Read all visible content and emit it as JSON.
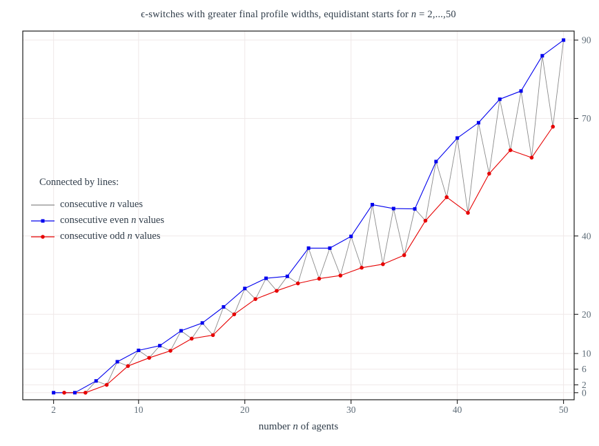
{
  "title": {
    "pre": "ϵ-switches with greater final profile widths, equidistant starts for ",
    "var": "n",
    "post": " = 2,...,50"
  },
  "xlabel": {
    "pre": "number ",
    "var": "n",
    "post": " of agents"
  },
  "legend": {
    "header": "Connected by lines:",
    "items": [
      {
        "pre": "consecutive ",
        "var": "n",
        "post": " values",
        "color": "#8a8a8a",
        "marker": "none"
      },
      {
        "pre": "consecutive even ",
        "var": "n",
        "post": " values",
        "color": "#0000ee",
        "marker": "square"
      },
      {
        "pre": "consecutive odd ",
        "var": "n",
        "post": " values",
        "color": "#e60000",
        "marker": "circle"
      }
    ]
  },
  "chart_data": {
    "type": "line",
    "title": "ϵ-switches with greater final profile widths, equidistant starts for n = 2,...,50",
    "xlabel": "number n of agents",
    "ylabel": "",
    "x": [
      2,
      3,
      4,
      5,
      6,
      7,
      8,
      9,
      10,
      11,
      12,
      13,
      14,
      15,
      16,
      17,
      18,
      19,
      20,
      21,
      22,
      23,
      24,
      25,
      26,
      27,
      28,
      29,
      30,
      31,
      32,
      33,
      34,
      35,
      36,
      37,
      38,
      39,
      40,
      41,
      42,
      43,
      44,
      45,
      46,
      47,
      48,
      49,
      50
    ],
    "widths": [
      0,
      0,
      0,
      0,
      3,
      2,
      7.9,
      6.8,
      10.8,
      8.9,
      12,
      10.7,
      15.8,
      13.8,
      17.8,
      14.7,
      21.9,
      20,
      26.6,
      23.9,
      29.2,
      26,
      29.7,
      27.9,
      36.9,
      29.1,
      36.9,
      29.9,
      39.9,
      31.9,
      48,
      32.8,
      47,
      35.1,
      46.9,
      43.9,
      59,
      49.9,
      65,
      45.9,
      68.9,
      55.9,
      74.9,
      61.9,
      77,
      60,
      86,
      67.9,
      90
    ],
    "series": [
      {
        "name": "consecutive n values",
        "subset": "all",
        "color": "#8a8a8a",
        "marker": "none",
        "line_width": 0.9
      },
      {
        "name": "consecutive even n values",
        "subset": "even",
        "color": "#0000ee",
        "marker": "square",
        "line_width": 1.1
      },
      {
        "name": "consecutive odd n values",
        "subset": "odd",
        "color": "#e60000",
        "marker": "circle",
        "line_width": 1.1
      }
    ],
    "x_ticks": [
      2,
      10,
      20,
      30,
      40,
      50
    ],
    "y_ticks": [
      0,
      2,
      6,
      10,
      20,
      40,
      70,
      90
    ],
    "xlim": [
      -0.9,
      51
    ],
    "ylim": [
      -1.8,
      92.3
    ],
    "grid": true,
    "grid_color": "#efe8e8",
    "frame_color": "#1a1a1a",
    "tick_label_color": "#5d6b77",
    "legend_position": "left-middle",
    "y_axis_side": "right"
  }
}
